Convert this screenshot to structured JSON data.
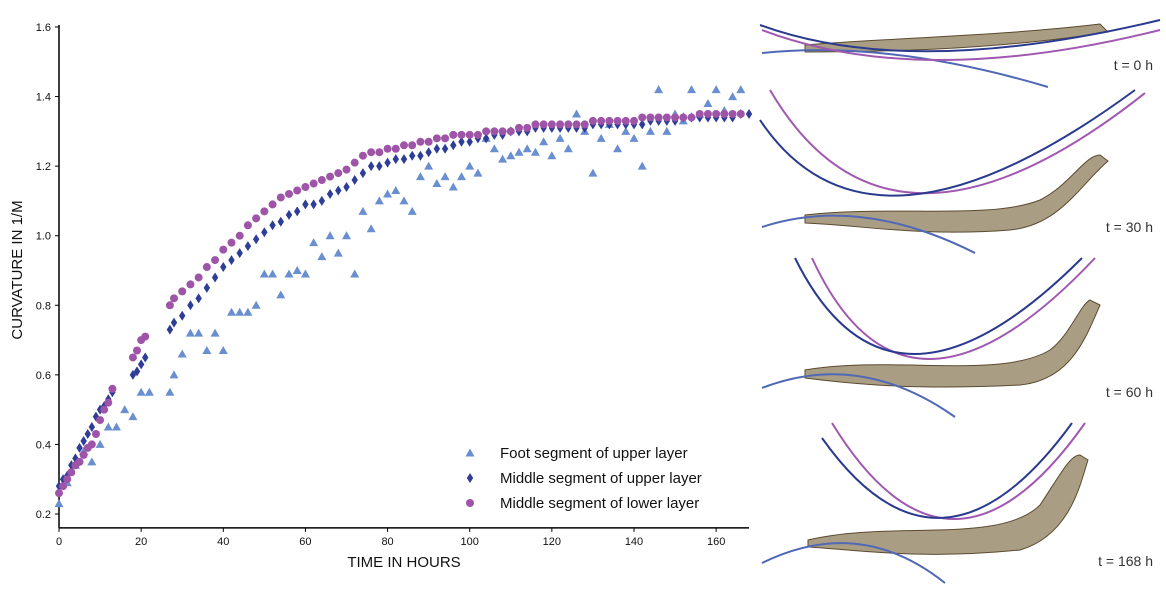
{
  "chart_data": {
    "type": "scatter",
    "xlabel": "TIME IN HOURS",
    "ylabel": "CURVATURE IN 1/M",
    "xlim": [
      0,
      168
    ],
    "ylim": [
      0.16,
      1.6
    ],
    "xticks": [
      0,
      20,
      40,
      60,
      80,
      100,
      120,
      140,
      160
    ],
    "yticks": [
      0.2,
      0.4,
      0.6,
      0.8,
      1.0,
      1.2,
      1.4,
      1.6
    ],
    "ytick_labels": [
      "0.2",
      "0.4",
      "0.6",
      "0.8",
      "1.0",
      "1.2",
      "1.4",
      "1.6"
    ],
    "grid": false,
    "legend_position": "bottom-right",
    "series": [
      {
        "name": "Foot segment of upper layer",
        "marker": "triangle",
        "color": "#6a8fd0",
        "x": [
          0,
          2,
          4,
          6,
          8,
          10,
          12,
          14,
          16,
          18,
          20,
          22,
          27,
          28,
          30,
          32,
          34,
          36,
          38,
          40,
          42,
          44,
          46,
          48,
          50,
          52,
          54,
          56,
          58,
          60,
          62,
          64,
          66,
          68,
          70,
          72,
          74,
          76,
          78,
          80,
          82,
          84,
          86,
          88,
          90,
          92,
          94,
          96,
          98,
          100,
          102,
          104,
          106,
          108,
          110,
          112,
          114,
          116,
          118,
          120,
          122,
          124,
          126,
          128,
          130,
          132,
          134,
          136,
          138,
          140,
          142,
          144,
          146,
          148,
          150,
          152,
          154,
          156,
          158,
          160,
          162,
          164,
          166
        ],
        "y": [
          0.23,
          0.29,
          0.34,
          0.38,
          0.35,
          0.4,
          0.45,
          0.45,
          0.5,
          0.48,
          0.55,
          0.55,
          0.55,
          0.6,
          0.66,
          0.72,
          0.72,
          0.67,
          0.72,
          0.67,
          0.78,
          0.78,
          0.78,
          0.8,
          0.89,
          0.89,
          0.83,
          0.89,
          0.9,
          0.89,
          0.98,
          0.94,
          1.0,
          0.95,
          1.0,
          0.89,
          1.07,
          1.02,
          1.1,
          1.12,
          1.13,
          1.1,
          1.07,
          1.17,
          1.2,
          1.15,
          1.17,
          1.14,
          1.17,
          1.2,
          1.18,
          1.28,
          1.25,
          1.22,
          1.23,
          1.24,
          1.25,
          1.24,
          1.27,
          1.23,
          1.28,
          1.25,
          1.35,
          1.3,
          1.18,
          1.28,
          1.32,
          1.25,
          1.3,
          1.28,
          1.2,
          1.3,
          1.42,
          1.3,
          1.35,
          1.33,
          1.42,
          1.35,
          1.38,
          1.42,
          1.36,
          1.4,
          1.42
        ]
      },
      {
        "name": "Middle segment of upper layer",
        "marker": "diamond",
        "color": "#2e3d96",
        "x": [
          0,
          1,
          2,
          3,
          4,
          5,
          6,
          7,
          8,
          9,
          10,
          11,
          12,
          13,
          18,
          19,
          20,
          21,
          27,
          28,
          30,
          32,
          34,
          36,
          38,
          40,
          42,
          44,
          46,
          48,
          50,
          52,
          54,
          56,
          58,
          60,
          62,
          64,
          66,
          68,
          70,
          72,
          74,
          76,
          78,
          80,
          82,
          84,
          86,
          88,
          90,
          92,
          94,
          96,
          98,
          100,
          102,
          104,
          106,
          108,
          110,
          112,
          114,
          116,
          118,
          120,
          122,
          124,
          126,
          128,
          130,
          132,
          134,
          136,
          138,
          140,
          142,
          144,
          146,
          148,
          150,
          152,
          154,
          156,
          158,
          160,
          162,
          164,
          166,
          168
        ],
        "y": [
          0.28,
          0.3,
          0.31,
          0.34,
          0.36,
          0.39,
          0.41,
          0.43,
          0.45,
          0.48,
          0.5,
          0.51,
          0.53,
          0.55,
          0.6,
          0.61,
          0.63,
          0.65,
          0.73,
          0.75,
          0.77,
          0.8,
          0.82,
          0.85,
          0.88,
          0.91,
          0.93,
          0.95,
          0.97,
          0.99,
          1.01,
          1.03,
          1.04,
          1.06,
          1.07,
          1.09,
          1.09,
          1.1,
          1.12,
          1.13,
          1.14,
          1.16,
          1.18,
          1.2,
          1.2,
          1.21,
          1.22,
          1.22,
          1.23,
          1.23,
          1.24,
          1.25,
          1.25,
          1.26,
          1.27,
          1.27,
          1.28,
          1.28,
          1.29,
          1.29,
          1.3,
          1.3,
          1.3,
          1.31,
          1.31,
          1.31,
          1.31,
          1.31,
          1.31,
          1.31,
          1.32,
          1.32,
          1.32,
          1.32,
          1.32,
          1.32,
          1.32,
          1.33,
          1.33,
          1.33,
          1.33,
          1.34,
          1.34,
          1.34,
          1.34,
          1.34,
          1.34,
          1.34,
          1.35,
          1.35
        ]
      },
      {
        "name": "Middle segment of lower layer",
        "marker": "circle",
        "color": "#9e55a8",
        "x": [
          0,
          1,
          2,
          3,
          4,
          5,
          6,
          7,
          8,
          9,
          10,
          11,
          12,
          13,
          18,
          19,
          20,
          21,
          27,
          28,
          30,
          32,
          34,
          36,
          38,
          40,
          42,
          44,
          46,
          48,
          50,
          52,
          54,
          56,
          58,
          60,
          62,
          64,
          66,
          68,
          70,
          72,
          74,
          76,
          78,
          80,
          82,
          84,
          86,
          88,
          90,
          92,
          94,
          96,
          98,
          100,
          102,
          104,
          106,
          108,
          110,
          112,
          114,
          116,
          118,
          120,
          122,
          124,
          126,
          128,
          130,
          132,
          134,
          136,
          138,
          140,
          142,
          144,
          146,
          148,
          150,
          152,
          154,
          156,
          158,
          160,
          162,
          164,
          166
        ],
        "y": [
          0.26,
          0.28,
          0.3,
          0.32,
          0.34,
          0.35,
          0.37,
          0.39,
          0.4,
          0.43,
          0.47,
          0.5,
          0.52,
          0.56,
          0.65,
          0.67,
          0.7,
          0.71,
          0.8,
          0.82,
          0.84,
          0.86,
          0.88,
          0.91,
          0.93,
          0.96,
          0.98,
          1.0,
          1.03,
          1.05,
          1.07,
          1.09,
          1.11,
          1.12,
          1.13,
          1.14,
          1.15,
          1.16,
          1.17,
          1.18,
          1.19,
          1.21,
          1.23,
          1.24,
          1.24,
          1.25,
          1.25,
          1.26,
          1.26,
          1.27,
          1.27,
          1.28,
          1.28,
          1.29,
          1.29,
          1.29,
          1.29,
          1.3,
          1.3,
          1.3,
          1.3,
          1.31,
          1.31,
          1.32,
          1.32,
          1.32,
          1.32,
          1.32,
          1.32,
          1.32,
          1.33,
          1.33,
          1.33,
          1.33,
          1.33,
          1.33,
          1.34,
          1.34,
          1.34,
          1.34,
          1.34,
          1.34,
          1.34,
          1.35,
          1.35,
          1.35,
          1.35,
          1.35,
          1.35
        ]
      }
    ]
  },
  "photo_panels": [
    {
      "label": "t = 0 h"
    },
    {
      "label": "t = 30 h"
    },
    {
      "label": "t = 60 h"
    },
    {
      "label": "t = 168 h"
    }
  ],
  "colors": {
    "wood": "#9a8d6f",
    "foot_fit": "#5068b5",
    "upper_fit": "#2a3a8f",
    "lower_fit": "#a058b0"
  }
}
